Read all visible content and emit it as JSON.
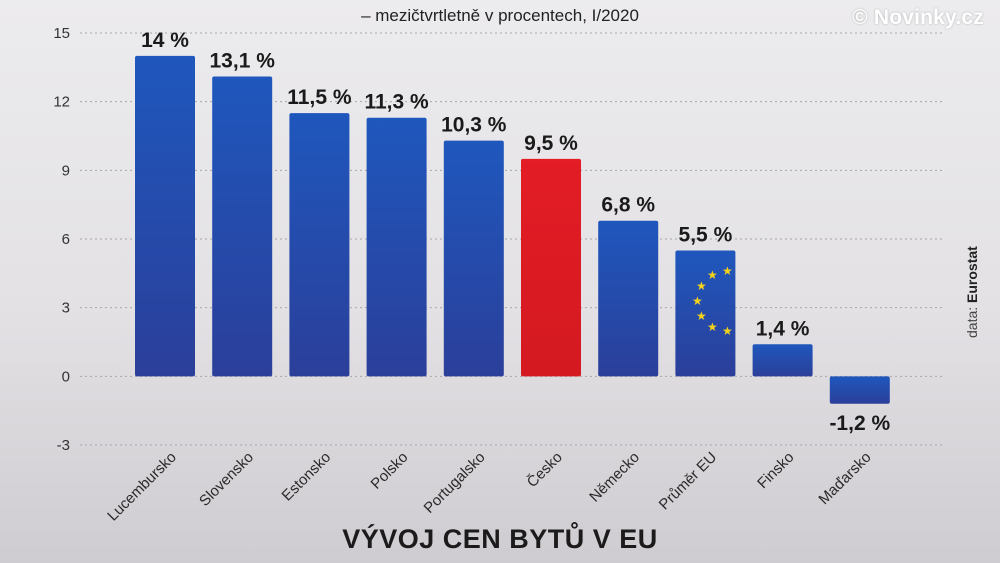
{
  "subtitle": "– mezičtvrtletně v procentech, I/2020",
  "brand": "© Novinky.cz",
  "title": "VÝVOJ CEN BYTŮ V EU",
  "source": {
    "prefix": "data: ",
    "name": "Eurostat"
  },
  "colors": {
    "bar": "#1f57bd",
    "bar_dark": "#2b3f9a",
    "highlight": "#e31c25",
    "star": "#f4d21c"
  },
  "chart_data": {
    "type": "bar",
    "categories": [
      "Lucembursko",
      "Slovensko",
      "Estonsko",
      "Polsko",
      "Portugalsko",
      "Česko",
      "Německo",
      "Průměr EU",
      "Finsko",
      "Maďarsko"
    ],
    "values": [
      14,
      13.1,
      11.5,
      11.3,
      10.3,
      9.5,
      6.8,
      5.5,
      1.4,
      -1.2
    ],
    "value_labels": [
      "14 %",
      "13,1 %",
      "11,5 %",
      "11,3 %",
      "10,3 %",
      "9,5 %",
      "6,8 %",
      "5,5 %",
      "1,4 %",
      "-1,2 %"
    ],
    "highlight": "Česko",
    "eu_flag_bar": "Průměr EU",
    "yticks": [
      15,
      12,
      9,
      6,
      3,
      0,
      -3
    ],
    "ytick_labels": [
      "15",
      "12",
      "9",
      "6",
      "3",
      "0",
      "-3"
    ],
    "ylim": [
      -3,
      15
    ],
    "grid": true,
    "title": "VÝVOJ CEN BYTŮ V EU",
    "subtitle": "– mezičtvrtletně v procentech, I/2020"
  }
}
